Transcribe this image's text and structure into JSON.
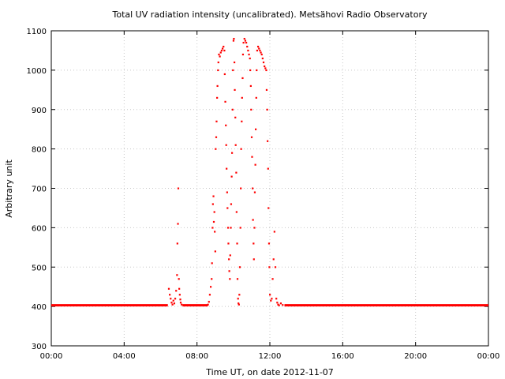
{
  "chart_data": {
    "type": "scatter",
    "title": "Total UV radiation intensity (uncalibrated). Metsähovi Radio Observatory",
    "xlabel": "Time UT, on date 2012-11-07",
    "ylabel": "Arbitrary unit",
    "xlim": [
      0,
      24
    ],
    "ylim": [
      300,
      1100
    ],
    "x_ticks": [
      {
        "value": 0,
        "label": "00:00"
      },
      {
        "value": 4,
        "label": "04:00"
      },
      {
        "value": 8,
        "label": "08:00"
      },
      {
        "value": 12,
        "label": "12:00"
      },
      {
        "value": 16,
        "label": "16:00"
      },
      {
        "value": 20,
        "label": "20:00"
      },
      {
        "value": 24,
        "label": "00:00"
      }
    ],
    "y_ticks": [
      300,
      400,
      500,
      600,
      700,
      800,
      900,
      1000,
      1100
    ],
    "grid": true,
    "marker_color": "#ff0000",
    "x_unit": "hours UT",
    "series": [
      {
        "baseline": {
          "value": 403,
          "x_ranges": [
            [
              0.0,
              6.4
            ],
            [
              7.2,
              8.6
            ],
            [
              12.8,
              24.0
            ]
          ]
        },
        "points": [
          [
            6.45,
            445
          ],
          [
            6.5,
            430
          ],
          [
            6.55,
            420
          ],
          [
            6.6,
            410
          ],
          [
            6.65,
            405
          ],
          [
            6.7,
            415
          ],
          [
            6.75,
            408
          ],
          [
            6.8,
            420
          ],
          [
            6.85,
            440
          ],
          [
            6.9,
            480
          ],
          [
            6.92,
            560
          ],
          [
            6.95,
            610
          ],
          [
            6.97,
            700
          ],
          [
            7.0,
            470
          ],
          [
            7.02,
            445
          ],
          [
            7.05,
            430
          ],
          [
            7.08,
            418
          ],
          [
            7.1,
            410
          ],
          [
            7.15,
            405
          ],
          [
            8.6,
            405
          ],
          [
            8.65,
            412
          ],
          [
            8.7,
            430
          ],
          [
            8.75,
            450
          ],
          [
            8.8,
            470
          ],
          [
            8.82,
            510
          ],
          [
            8.85,
            600
          ],
          [
            8.87,
            660
          ],
          [
            8.9,
            680
          ],
          [
            8.92,
            615
          ],
          [
            8.95,
            640
          ],
          [
            8.97,
            590
          ],
          [
            9.0,
            540
          ],
          [
            9.02,
            800
          ],
          [
            9.05,
            830
          ],
          [
            9.07,
            870
          ],
          [
            9.1,
            930
          ],
          [
            9.12,
            960
          ],
          [
            9.15,
            1000
          ],
          [
            9.17,
            1020
          ],
          [
            9.2,
            1040
          ],
          [
            9.25,
            1035
          ],
          [
            9.3,
            1045
          ],
          [
            9.35,
            1050
          ],
          [
            9.4,
            1055
          ],
          [
            9.45,
            1060
          ],
          [
            9.5,
            1050
          ],
          [
            9.52,
            990
          ],
          [
            9.55,
            920
          ],
          [
            9.58,
            860
          ],
          [
            9.6,
            810
          ],
          [
            9.62,
            750
          ],
          [
            9.65,
            690
          ],
          [
            9.67,
            650
          ],
          [
            9.7,
            600
          ],
          [
            9.72,
            560
          ],
          [
            9.75,
            520
          ],
          [
            9.77,
            490
          ],
          [
            9.8,
            470
          ],
          [
            9.82,
            530
          ],
          [
            9.85,
            600
          ],
          [
            9.87,
            660
          ],
          [
            9.9,
            730
          ],
          [
            9.92,
            790
          ],
          [
            9.95,
            900
          ],
          [
            9.97,
            1000
          ],
          [
            10.0,
            1075
          ],
          [
            10.02,
            1080
          ],
          [
            10.05,
            1020
          ],
          [
            10.07,
            950
          ],
          [
            10.1,
            880
          ],
          [
            10.12,
            810
          ],
          [
            10.15,
            740
          ],
          [
            10.17,
            640
          ],
          [
            10.2,
            560
          ],
          [
            10.22,
            470
          ],
          [
            10.25,
            420
          ],
          [
            10.27,
            408
          ],
          [
            10.3,
            405
          ],
          [
            10.32,
            430
          ],
          [
            10.35,
            500
          ],
          [
            10.38,
            600
          ],
          [
            10.4,
            700
          ],
          [
            10.42,
            800
          ],
          [
            10.45,
            870
          ],
          [
            10.47,
            930
          ],
          [
            10.5,
            980
          ],
          [
            10.52,
            1040
          ],
          [
            10.55,
            1070
          ],
          [
            10.6,
            1080
          ],
          [
            10.65,
            1075
          ],
          [
            10.7,
            1070
          ],
          [
            10.75,
            1060
          ],
          [
            10.8,
            1050
          ],
          [
            10.85,
            1040
          ],
          [
            10.9,
            1030
          ],
          [
            10.92,
            1000
          ],
          [
            10.95,
            960
          ],
          [
            10.97,
            900
          ],
          [
            11.0,
            830
          ],
          [
            11.02,
            780
          ],
          [
            11.05,
            700
          ],
          [
            11.07,
            620
          ],
          [
            11.1,
            560
          ],
          [
            11.12,
            520
          ],
          [
            11.15,
            600
          ],
          [
            11.17,
            690
          ],
          [
            11.2,
            760
          ],
          [
            11.22,
            850
          ],
          [
            11.25,
            930
          ],
          [
            11.27,
            1000
          ],
          [
            11.3,
            1050
          ],
          [
            11.35,
            1060
          ],
          [
            11.4,
            1055
          ],
          [
            11.45,
            1050
          ],
          [
            11.5,
            1045
          ],
          [
            11.55,
            1040
          ],
          [
            11.6,
            1030
          ],
          [
            11.65,
            1020
          ],
          [
            11.7,
            1010
          ],
          [
            11.75,
            1005
          ],
          [
            11.8,
            1000
          ],
          [
            11.82,
            950
          ],
          [
            11.85,
            900
          ],
          [
            11.87,
            820
          ],
          [
            11.9,
            750
          ],
          [
            11.92,
            650
          ],
          [
            11.95,
            560
          ],
          [
            11.97,
            500
          ],
          [
            12.0,
            430
          ],
          [
            12.05,
            415
          ],
          [
            12.1,
            420
          ],
          [
            12.15,
            470
          ],
          [
            12.2,
            520
          ],
          [
            12.25,
            590
          ],
          [
            12.3,
            500
          ],
          [
            12.35,
            420
          ],
          [
            12.4,
            410
          ],
          [
            12.45,
            405
          ],
          [
            12.5,
            403
          ],
          [
            12.6,
            408
          ],
          [
            12.7,
            404
          ]
        ]
      }
    ]
  }
}
